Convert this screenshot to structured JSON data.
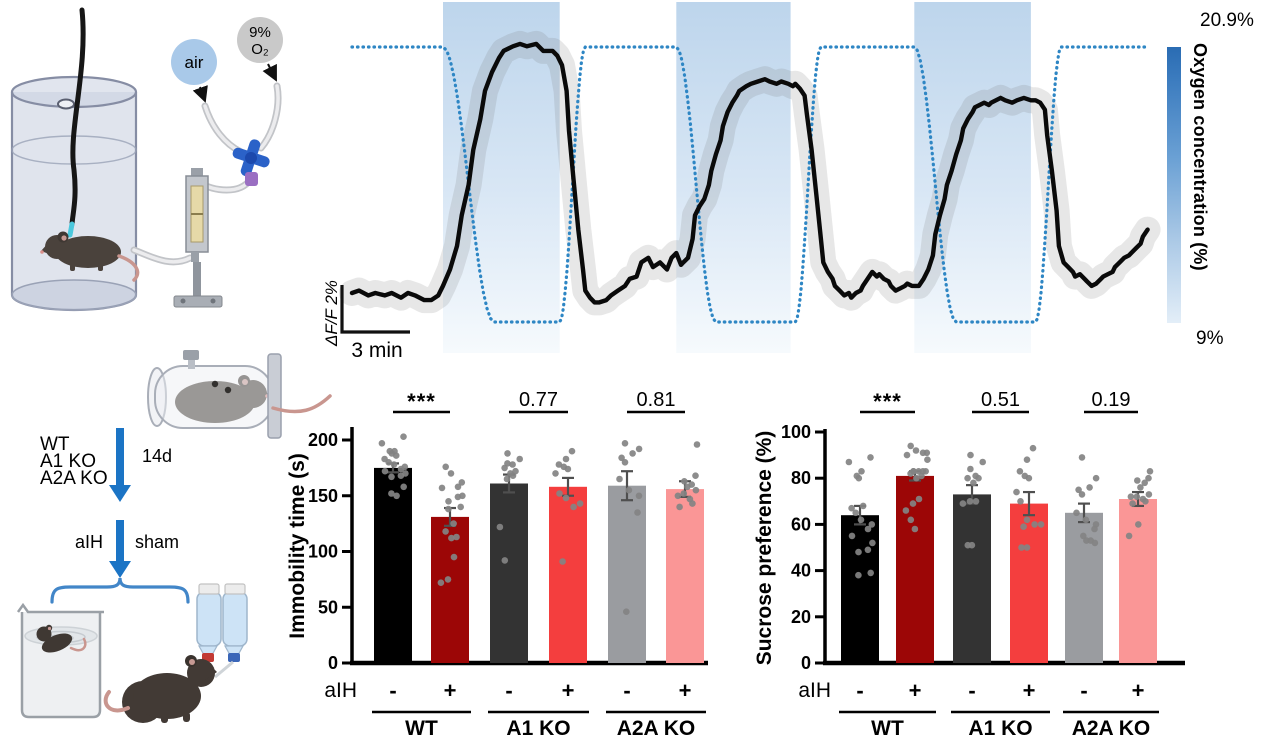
{
  "figure": {
    "panel_top_left": {
      "air_label": "air",
      "o2_label_line1": "9%",
      "o2_label_line2": "O₂"
    },
    "panel_bottom_left": {
      "genotypes": [
        "WT",
        "A1 KO",
        "A2A KO"
      ],
      "duration_label": "14d",
      "left_arm_label": "aIH",
      "right_arm_label": "sham"
    }
  },
  "chart_data": [
    {
      "id": "photometry_trace",
      "type": "line",
      "x_unit": "min",
      "y_unit": "dF/F %",
      "scalebar_x_label": "3 min",
      "scalebar_y_label": "ΔF/F 2%",
      "scalebar_x_minutes": 3,
      "scalebar_y_percent": 2,
      "colorbar": {
        "label": "Oxygen concentration (%)",
        "top_label": "20.9%",
        "bottom_label": "9%",
        "top_color": "#2a6cb3",
        "bottom_color": "#e3eef8"
      },
      "oxygen_high_pct": 20.9,
      "oxygen_low_pct": 9,
      "hypoxia_bands_min": [
        [
          3.9,
          8.9
        ],
        [
          13.9,
          18.8
        ],
        [
          24.1,
          29.1
        ]
      ],
      "oxygen_steps": [
        [
          0,
          20.9
        ],
        [
          3.9,
          20.9
        ],
        [
          6.1,
          9
        ],
        [
          8.9,
          9
        ],
        [
          10.0,
          20.9
        ],
        [
          13.9,
          20.9
        ],
        [
          15.6,
          9
        ],
        [
          19.0,
          9
        ],
        [
          20.1,
          20.9
        ],
        [
          24.1,
          20.9
        ],
        [
          25.9,
          9
        ],
        [
          29.3,
          9
        ],
        [
          30.4,
          20.9
        ],
        [
          34.1,
          20.9
        ]
      ],
      "series_name": "adenosine sensor ΔF/F (mean ± SEM)",
      "dff_points": [
        [
          0,
          0
        ],
        [
          0.3,
          0.1
        ],
        [
          0.7,
          -0.1
        ],
        [
          1,
          0
        ],
        [
          1.4,
          -0.1
        ],
        [
          1.7,
          0
        ],
        [
          2.1,
          -0.2
        ],
        [
          2.4,
          0
        ],
        [
          2.7,
          -0.1
        ],
        [
          3.1,
          -0.3
        ],
        [
          3.4,
          -0.3
        ],
        [
          3.7,
          -0.1
        ],
        [
          3.9,
          0.3
        ],
        [
          4.2,
          1
        ],
        [
          4.5,
          2
        ],
        [
          4.7,
          3.3
        ],
        [
          5,
          4.6
        ],
        [
          5.2,
          6.1
        ],
        [
          5.5,
          7.4
        ],
        [
          5.7,
          8.6
        ],
        [
          6,
          9.4
        ],
        [
          6.3,
          10
        ],
        [
          6.5,
          10.3
        ],
        [
          6.9,
          10.5
        ],
        [
          7.2,
          10.6
        ],
        [
          7.5,
          10.5
        ],
        [
          7.9,
          10.6
        ],
        [
          8.2,
          10.3
        ],
        [
          8.6,
          10.3
        ],
        [
          8.8,
          10.1
        ],
        [
          9,
          9.7
        ],
        [
          9.2,
          8.6
        ],
        [
          9.3,
          6.9
        ],
        [
          9.5,
          4.8
        ],
        [
          9.7,
          2.7
        ],
        [
          9.9,
          1
        ],
        [
          10,
          0.1
        ],
        [
          10.2,
          -0.2
        ],
        [
          10.4,
          -0.4
        ],
        [
          10.6,
          -0.4
        ],
        [
          10.9,
          -0.3
        ],
        [
          11.1,
          -0.1
        ],
        [
          11.4,
          0.1
        ],
        [
          11.7,
          0.3
        ],
        [
          11.9,
          0.6
        ],
        [
          12.2,
          0.7
        ],
        [
          12.4,
          1.3
        ],
        [
          12.7,
          1.5
        ],
        [
          12.9,
          1.1
        ],
        [
          13.2,
          1.3
        ],
        [
          13.5,
          1
        ],
        [
          13.7,
          1.5
        ],
        [
          13.9,
          1.7
        ],
        [
          14.1,
          1.2
        ],
        [
          14.2,
          1.3
        ],
        [
          14.4,
          1.5
        ],
        [
          14.6,
          2.3
        ],
        [
          14.7,
          3.3
        ],
        [
          14.9,
          3.7
        ],
        [
          15.1,
          4
        ],
        [
          15.3,
          4.6
        ],
        [
          15.4,
          5.2
        ],
        [
          15.6,
          5.9
        ],
        [
          15.8,
          6.5
        ],
        [
          15.9,
          7.1
        ],
        [
          16.1,
          7.7
        ],
        [
          16.3,
          8.1
        ],
        [
          16.5,
          8.4
        ],
        [
          16.6,
          8.6
        ],
        [
          16.9,
          8.8
        ],
        [
          17.1,
          8.9
        ],
        [
          17.4,
          9
        ],
        [
          17.7,
          9.1
        ],
        [
          17.9,
          9
        ],
        [
          18.2,
          8.9
        ],
        [
          18.4,
          9
        ],
        [
          18.7,
          8.9
        ],
        [
          18.9,
          8.8
        ],
        [
          19,
          8.9
        ],
        [
          19.2,
          8.7
        ],
        [
          19.4,
          8.4
        ],
        [
          19.5,
          7.6
        ],
        [
          19.7,
          6.1
        ],
        [
          19.9,
          4.2
        ],
        [
          20.1,
          2.3
        ],
        [
          20.2,
          1.3
        ],
        [
          20.4,
          0.9
        ],
        [
          20.6,
          0.6
        ],
        [
          20.7,
          0.3
        ],
        [
          20.9,
          0.1
        ],
        [
          21.1,
          -0.1
        ],
        [
          21.3,
          0
        ],
        [
          21.4,
          -0.2
        ],
        [
          21.6,
          0
        ],
        [
          21.8,
          0.1
        ],
        [
          21.9,
          0.3
        ],
        [
          22.1,
          0.6
        ],
        [
          22.3,
          0.9
        ],
        [
          22.5,
          0.7
        ],
        [
          22.6,
          0.8
        ],
        [
          22.8,
          0.6
        ],
        [
          23,
          0.5
        ],
        [
          23.1,
          0.3
        ],
        [
          23.3,
          0.1
        ],
        [
          23.5,
          0.2
        ],
        [
          23.7,
          0.3
        ],
        [
          23.8,
          0.4
        ],
        [
          24,
          0.3
        ],
        [
          24.2,
          0.3
        ],
        [
          24.3,
          0.3
        ],
        [
          24.5,
          0.6
        ],
        [
          24.7,
          1
        ],
        [
          24.9,
          1.6
        ],
        [
          25,
          2.5
        ],
        [
          25.2,
          3.3
        ],
        [
          25.4,
          4
        ],
        [
          25.5,
          4.6
        ],
        [
          25.7,
          5.2
        ],
        [
          25.9,
          5.9
        ],
        [
          26.1,
          6.5
        ],
        [
          26.2,
          7
        ],
        [
          26.4,
          7.4
        ],
        [
          26.6,
          7.7
        ],
        [
          26.7,
          7.9
        ],
        [
          26.9,
          8
        ],
        [
          27.1,
          8.1
        ],
        [
          27.3,
          8
        ],
        [
          27.4,
          8.1
        ],
        [
          27.6,
          8.2
        ],
        [
          27.8,
          8.3
        ],
        [
          28,
          8.2
        ],
        [
          28.3,
          8.1
        ],
        [
          28.5,
          8.2
        ],
        [
          28.8,
          8.3
        ],
        [
          29.1,
          8.2
        ],
        [
          29.3,
          8.2
        ],
        [
          29.5,
          8.1
        ],
        [
          29.7,
          7.8
        ],
        [
          29.8,
          6.7
        ],
        [
          30,
          5.2
        ],
        [
          30.2,
          3.5
        ],
        [
          30.3,
          2
        ],
        [
          30.5,
          1.3
        ],
        [
          30.7,
          1.1
        ],
        [
          30.9,
          0.9
        ],
        [
          31,
          0.7
        ],
        [
          31.2,
          0.8
        ],
        [
          31.4,
          0.6
        ],
        [
          31.5,
          0.5
        ],
        [
          31.7,
          0.3
        ],
        [
          31.9,
          0.4
        ],
        [
          32.1,
          0.6
        ],
        [
          32.2,
          0.7
        ],
        [
          32.4,
          0.8
        ],
        [
          32.6,
          0.9
        ],
        [
          32.7,
          1.1
        ],
        [
          32.9,
          1.3
        ],
        [
          33.1,
          1.5
        ],
        [
          33.3,
          1.6
        ],
        [
          33.4,
          1.7
        ],
        [
          33.6,
          1.9
        ],
        [
          33.8,
          2.1
        ],
        [
          33.9,
          2.4
        ],
        [
          34.1,
          2.7
        ]
      ]
    },
    {
      "id": "immobility",
      "type": "bar",
      "ylabel": "Immobility time (s)",
      "ylim": [
        0,
        200
      ],
      "yticks": [
        0,
        50,
        100,
        150,
        200
      ],
      "xlabel": "aIH",
      "groups": [
        "WT",
        "A1 KO",
        "A2A KO"
      ],
      "bars": [
        {
          "group": "WT",
          "aih": "-",
          "value": 175,
          "sem": 4,
          "color": "#000000",
          "dots": [
            203,
            197,
            190,
            190,
            188,
            186,
            183,
            180,
            178,
            176,
            174,
            172,
            170,
            168,
            167,
            158,
            152,
            150
          ]
        },
        {
          "group": "WT",
          "aih": "+",
          "value": 131,
          "sem": 8,
          "color": "#9c0606",
          "dots": [
            176,
            170,
            162,
            158,
            157,
            150,
            149,
            145,
            140,
            138,
            125,
            118,
            113,
            112,
            95,
            75,
            72
          ]
        },
        {
          "group": "A1 KO",
          "aih": "-",
          "value": 161,
          "sem": 8,
          "color": "#333333",
          "dots": [
            188,
            183,
            179,
            178,
            175,
            172,
            170,
            168,
            165,
            122,
            92
          ]
        },
        {
          "group": "A1 KO",
          "aih": "+",
          "value": 158,
          "sem": 8,
          "color": "#f43e3e",
          "dots": [
            190,
            183,
            178,
            176,
            174,
            170,
            152,
            148,
            143,
            140,
            91
          ]
        },
        {
          "group": "A2A KO",
          "aih": "-",
          "value": 159,
          "sem": 13,
          "color": "#9a9ca0",
          "dots": [
            197,
            192,
            188,
            184,
            180,
            165,
            155,
            150,
            135,
            46
          ]
        },
        {
          "group": "A2A KO",
          "aih": "+",
          "value": 156,
          "sem": 7,
          "color": "#fa9696",
          "dots": [
            196,
            168,
            163,
            160,
            158,
            155,
            152,
            150,
            147,
            143,
            140
          ]
        }
      ],
      "significance": [
        {
          "between": "WT",
          "label": "***"
        },
        {
          "between": "A1 KO",
          "label": "0.77"
        },
        {
          "between": "A2A KO",
          "label": "0.81"
        }
      ]
    },
    {
      "id": "sucrose",
      "type": "bar",
      "ylabel": "Sucrose preference (%)",
      "ylim": [
        0,
        100
      ],
      "yticks": [
        0,
        20,
        40,
        60,
        80,
        100
      ],
      "xlabel": "aIH",
      "groups": [
        "WT",
        "A1 KO",
        "A2A KO"
      ],
      "bars": [
        {
          "group": "WT",
          "aih": "-",
          "value": 64,
          "sem": 4,
          "color": "#000000",
          "dots": [
            89,
            87,
            83,
            81,
            80,
            68,
            67,
            65,
            62,
            60,
            58,
            55,
            52,
            49,
            48,
            39,
            38
          ]
        },
        {
          "group": "WT",
          "aih": "+",
          "value": 81,
          "sem": 2,
          "color": "#9c0606",
          "dots": [
            94,
            92,
            91,
            91,
            90,
            88,
            83,
            83,
            83,
            83,
            83,
            82,
            81,
            80,
            71,
            69,
            66,
            62,
            58
          ]
        },
        {
          "group": "A1 KO",
          "aih": "-",
          "value": 73,
          "sem": 4,
          "color": "#333333",
          "dots": [
            90,
            87,
            84,
            81,
            80,
            80,
            78,
            70,
            70,
            69,
            51,
            51
          ]
        },
        {
          "group": "A1 KO",
          "aih": "+",
          "value": 69,
          "sem": 5,
          "color": "#f43e3e",
          "dots": [
            93,
            88,
            83,
            81,
            80,
            74,
            70,
            62,
            60,
            60,
            59,
            50,
            50
          ]
        },
        {
          "group": "A2A KO",
          "aih": "-",
          "value": 65,
          "sem": 4,
          "color": "#9a9ca0",
          "dots": [
            89,
            80,
            76,
            75,
            73,
            65,
            62,
            60,
            58,
            55,
            53,
            53,
            52
          ]
        },
        {
          "group": "A2A KO",
          "aih": "+",
          "value": 71,
          "sem": 3,
          "color": "#fa9696",
          "dots": [
            83,
            80,
            79,
            78,
            76,
            73,
            72,
            72,
            71,
            70,
            69,
            60,
            55
          ]
        }
      ],
      "significance": [
        {
          "between": "WT",
          "label": "***"
        },
        {
          "between": "A1 KO",
          "label": "0.51"
        },
        {
          "between": "A2A KO",
          "label": "0.19"
        }
      ]
    }
  ]
}
